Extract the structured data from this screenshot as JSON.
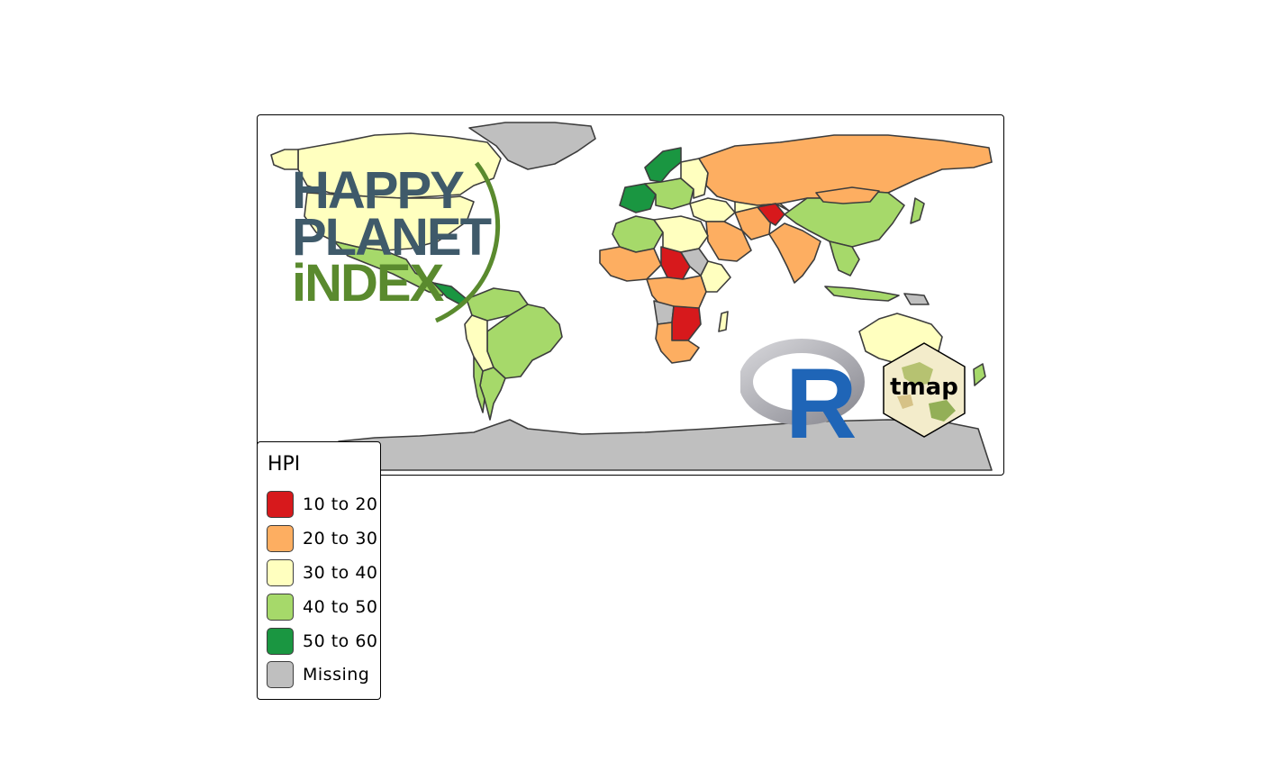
{
  "legend": {
    "title": "HPI",
    "items": [
      {
        "label": "10 to 20",
        "color": "#d7191c"
      },
      {
        "label": "20 to 30",
        "color": "#fdae61"
      },
      {
        "label": "30 to 40",
        "color": "#ffffbf"
      },
      {
        "label": "40 to 50",
        "color": "#a6d96a"
      },
      {
        "label": "50 to 60",
        "color": "#1a9641"
      },
      {
        "label": "Missing",
        "color": "#bfbfbf"
      }
    ]
  },
  "logos": {
    "hpi": {
      "line1": "HAPPY",
      "line2": "PLANET",
      "line3": "iNDEX"
    },
    "r": {
      "letter": "R"
    },
    "tmap": {
      "text": "tmap"
    }
  },
  "colors": {
    "missing": "#bfbfbf",
    "outline": "#3d3d3d",
    "hpi_text": "#3f5a6a",
    "hpi_green": "#5a8a2e",
    "r_blue": "#1f65b7"
  }
}
